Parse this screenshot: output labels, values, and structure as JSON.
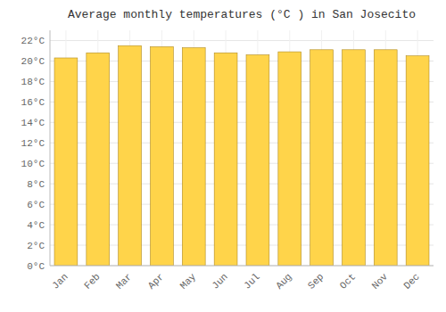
{
  "chart_data": {
    "type": "bar",
    "title": "Average monthly temperatures (°C ) in San Josecito",
    "categories": [
      "Jan",
      "Feb",
      "Mar",
      "Apr",
      "May",
      "Jun",
      "Jul",
      "Aug",
      "Sep",
      "Oct",
      "Nov",
      "Dec"
    ],
    "values": [
      20.3,
      20.8,
      21.5,
      21.4,
      21.3,
      20.8,
      20.6,
      20.9,
      21.1,
      21.1,
      21.1,
      20.5
    ],
    "color": "#FFD44A",
    "ylim": [
      0,
      23
    ],
    "yticks": [
      {
        "value": 0,
        "label": "0°C"
      },
      {
        "value": 2,
        "label": "2°C"
      },
      {
        "value": 4,
        "label": "4°C"
      },
      {
        "value": 6,
        "label": "6°C"
      },
      {
        "value": 8,
        "label": "8°C"
      },
      {
        "value": 10,
        "label": "10°C"
      },
      {
        "value": 12,
        "label": "12°C"
      },
      {
        "value": 14,
        "label": "14°C"
      },
      {
        "value": 16,
        "label": "16°C"
      },
      {
        "value": 18,
        "label": "18°C"
      },
      {
        "value": 20,
        "label": "20°C"
      },
      {
        "value": 22,
        "label": "22°C"
      }
    ],
    "grid": true
  }
}
